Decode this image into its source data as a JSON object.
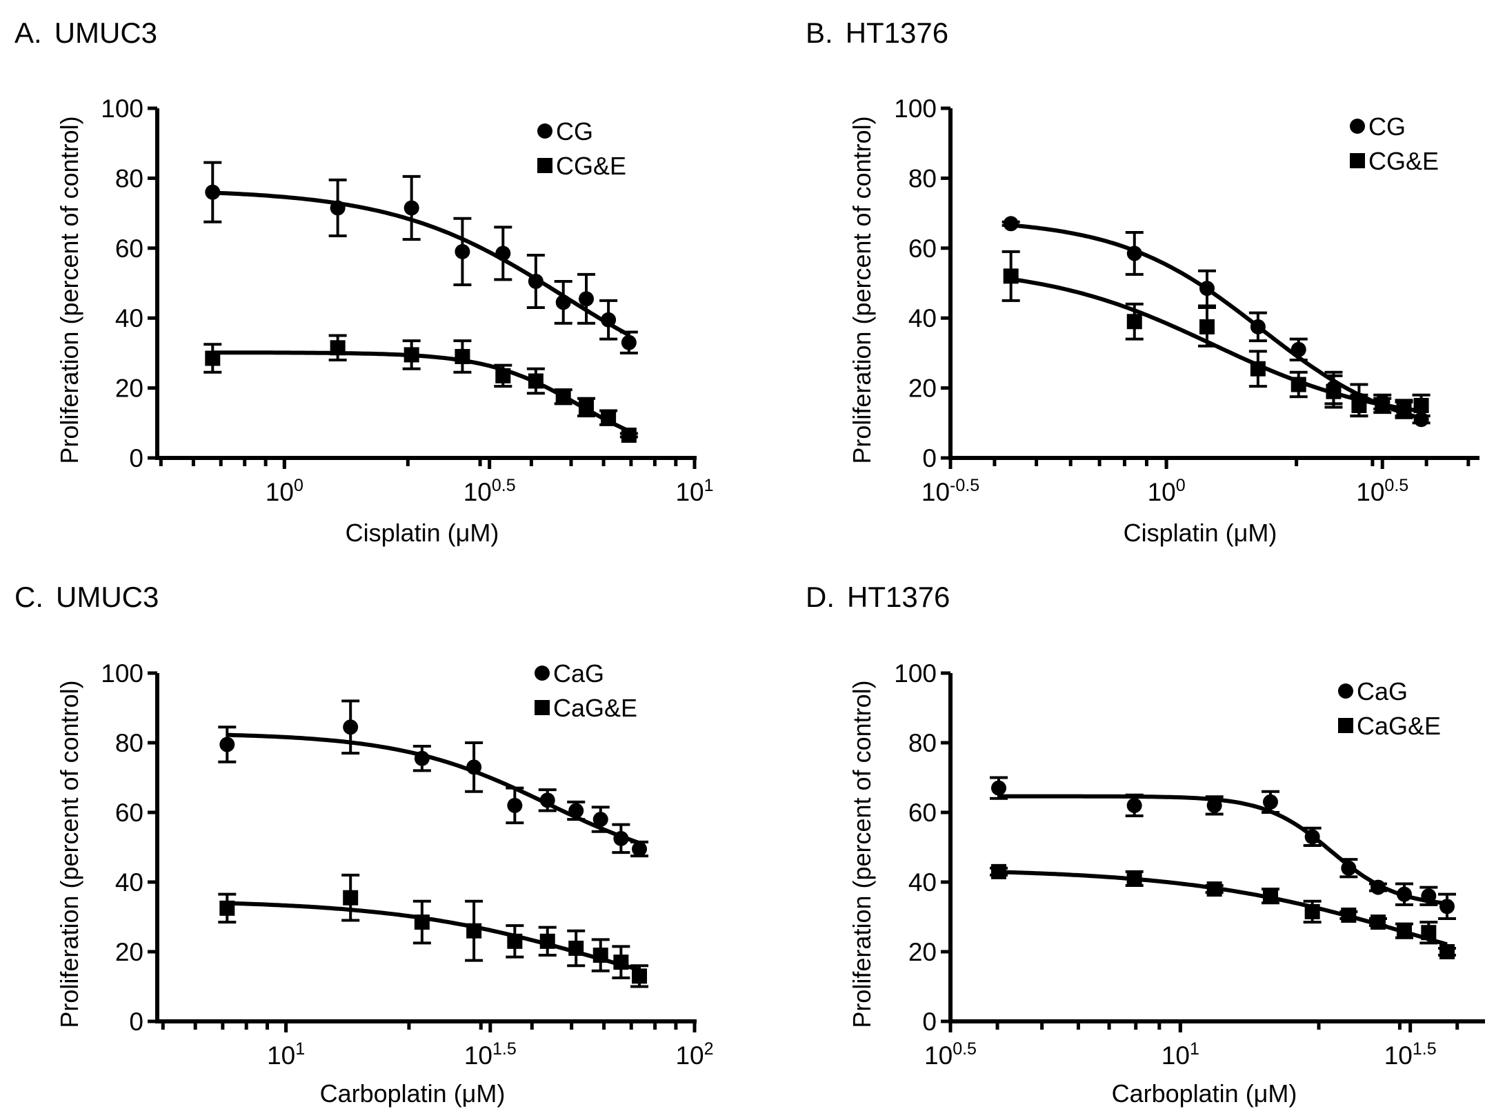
{
  "chart_data": [
    {
      "type": "scatter",
      "panel": "A.",
      "title": "UMUC3",
      "xlabel": "Cisplatin (μM)",
      "ylabel": "Proliferation (percent of control)",
      "xscale": "log10",
      "xlim_log10": [
        -0.31,
        1.0
      ],
      "ylim": [
        0,
        100
      ],
      "yticks": [
        0,
        20,
        40,
        60,
        80,
        100
      ],
      "xticks": [
        {
          "log": 0,
          "base": "10",
          "exp": "0"
        },
        {
          "log": 0.5,
          "base": "10",
          "exp": "0.5"
        },
        {
          "log": 1,
          "base": "10",
          "exp": "1"
        }
      ],
      "legend": "top-right",
      "grid": false,
      "series": [
        {
          "name": "CG",
          "marker": "circle",
          "x_log10": [
            -0.175,
            0.13,
            0.31,
            0.434,
            0.533,
            0.613,
            0.68,
            0.736,
            0.79,
            0.84
          ],
          "y": [
            76,
            71.5,
            71.5,
            59,
            58.5,
            50.5,
            44.5,
            45.5,
            39.5,
            33
          ],
          "err": [
            8.5,
            8,
            9,
            9.5,
            7.5,
            7.5,
            6,
            7,
            5.5,
            3
          ]
        },
        {
          "name": "CG&E",
          "marker": "square",
          "x_log10": [
            -0.175,
            0.13,
            0.31,
            0.434,
            0.533,
            0.613,
            0.68,
            0.736,
            0.79,
            0.84
          ],
          "y": [
            28.5,
            31.5,
            29.5,
            29,
            23.5,
            22,
            17.5,
            14.5,
            11.5,
            6.5
          ],
          "err": [
            4,
            3.5,
            4,
            4.5,
            3,
            3.5,
            2,
            2.5,
            2,
            0.5
          ]
        }
      ]
    },
    {
      "type": "scatter",
      "panel": "B.",
      "title": "HT1376",
      "xlabel": "Cisplatin (μM)",
      "ylabel": "Proliferation (percent of control)",
      "xscale": "log10",
      "xlim_log10": [
        -0.5,
        0.72
      ],
      "ylim": [
        0,
        100
      ],
      "yticks": [
        0,
        20,
        40,
        60,
        80,
        100
      ],
      "xticks": [
        {
          "log": -0.5,
          "base": "10",
          "exp": "-0.5"
        },
        {
          "log": 0,
          "base": "10",
          "exp": "0"
        },
        {
          "log": 0.5,
          "base": "10",
          "exp": "0.5"
        }
      ],
      "legend": "top-right",
      "grid": false,
      "series": [
        {
          "name": "CG",
          "marker": "circle",
          "x_log10": [
            -0.36,
            -0.074,
            0.094,
            0.212,
            0.306,
            0.387,
            0.446,
            0.5,
            0.55,
            0.59
          ],
          "y": [
            67,
            58.5,
            48.5,
            37.5,
            31,
            20,
            16.5,
            16,
            14,
            11
          ],
          "err": [
            0.5,
            6,
            5,
            4,
            3,
            4.5,
            4.5,
            2,
            2,
            1
          ]
        },
        {
          "name": "CG&E",
          "marker": "square",
          "x_log10": [
            -0.36,
            -0.074,
            0.094,
            0.212,
            0.306,
            0.387,
            0.446,
            0.5,
            0.55,
            0.59
          ],
          "y": [
            52,
            39,
            37.5,
            25.5,
            21,
            19,
            15,
            15,
            14,
            15
          ],
          "err": [
            7,
            5,
            5.5,
            5,
            3.5,
            4.5,
            3,
            2,
            2.5,
            3
          ]
        }
      ]
    },
    {
      "type": "scatter",
      "panel": "C.",
      "title": "UMUC3",
      "xlabel": "Carboplatin (μM)",
      "ylabel": "Proliferation (percent of control)",
      "xscale": "log10",
      "xlim_log10": [
        0.685,
        2.0
      ],
      "ylim": [
        0,
        100
      ],
      "yticks": [
        0,
        20,
        40,
        60,
        80,
        100
      ],
      "xticks": [
        {
          "log": 1,
          "base": "10",
          "exp": "1"
        },
        {
          "log": 1.5,
          "base": "10",
          "exp": "1.5"
        },
        {
          "log": 2,
          "base": "10",
          "exp": "2"
        }
      ],
      "legend": "top-right",
      "grid": false,
      "series": [
        {
          "name": "CaG",
          "marker": "circle",
          "x_log10": [
            0.856,
            1.158,
            1.333,
            1.46,
            1.56,
            1.64,
            1.71,
            1.77,
            1.82,
            1.865
          ],
          "y": [
            79.5,
            84.5,
            75.5,
            73,
            62,
            63.5,
            60.5,
            58,
            52.5,
            49.5
          ],
          "err": [
            5,
            7.5,
            3.5,
            7,
            5,
            3,
            2.5,
            3.5,
            4,
            2
          ]
        },
        {
          "name": "CaG&E",
          "marker": "square",
          "x_log10": [
            0.856,
            1.158,
            1.333,
            1.46,
            1.56,
            1.64,
            1.71,
            1.77,
            1.82,
            1.865
          ],
          "y": [
            32.5,
            35.5,
            28.5,
            26,
            23,
            23,
            21,
            19,
            17,
            13
          ],
          "err": [
            4,
            6.5,
            6,
            8.5,
            4.5,
            4,
            5,
            4.5,
            4.5,
            3
          ]
        }
      ]
    },
    {
      "type": "scatter",
      "panel": "D.",
      "title": "HT1376",
      "xlabel": "Carboplatin (μM)",
      "ylabel": "Proliferation (percent of control)",
      "xscale": "log10",
      "xlim_log10": [
        0.5,
        1.658
      ],
      "ylim": [
        0,
        100
      ],
      "yticks": [
        0,
        20,
        40,
        60,
        80,
        100
      ],
      "xticks": [
        {
          "log": 0.5,
          "base": "10",
          "exp": "0.5"
        },
        {
          "log": 1,
          "base": "10",
          "exp": "1"
        },
        {
          "log": 1.5,
          "base": "10",
          "exp": "1.5"
        }
      ],
      "legend": "top-right",
      "grid": false,
      "series": [
        {
          "name": "CaG",
          "marker": "circle",
          "x_log10": [
            0.605,
            0.9,
            1.074,
            1.196,
            1.287,
            1.366,
            1.43,
            1.487,
            1.54,
            1.58
          ],
          "y": [
            67,
            62,
            62,
            63,
            53,
            44,
            38.5,
            36.5,
            36,
            33
          ],
          "err": [
            3,
            3,
            2.5,
            3,
            2.5,
            2.5,
            1,
            3,
            2.5,
            3.5
          ]
        },
        {
          "name": "CaG&E",
          "marker": "square",
          "x_log10": [
            0.605,
            0.9,
            1.074,
            1.196,
            1.287,
            1.366,
            1.43,
            1.487,
            1.54,
            1.58
          ],
          "y": [
            43,
            41,
            38,
            36,
            31.5,
            30.5,
            28.5,
            26,
            25.5,
            20
          ],
          "err": [
            1,
            2,
            1,
            2,
            3,
            1,
            1,
            2,
            3,
            1
          ]
        }
      ]
    }
  ]
}
